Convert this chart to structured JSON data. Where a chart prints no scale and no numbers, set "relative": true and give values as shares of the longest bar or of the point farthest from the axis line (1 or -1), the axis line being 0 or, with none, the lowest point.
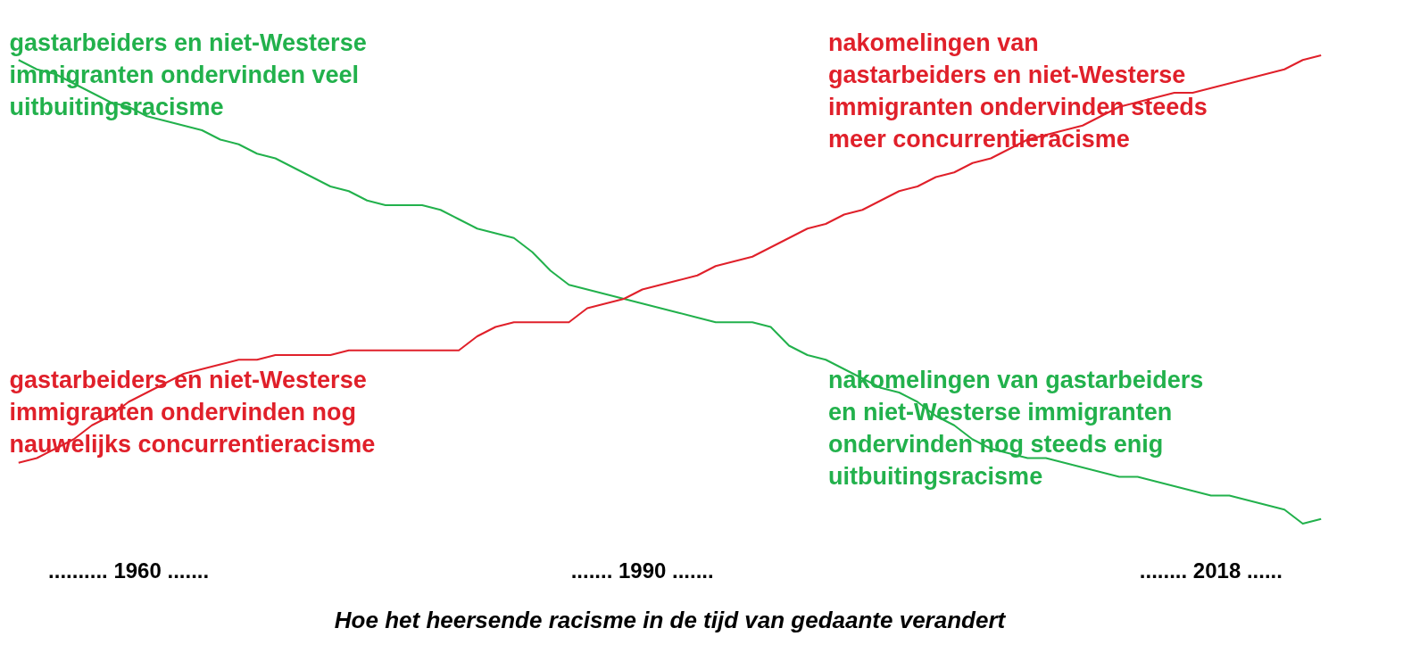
{
  "chart_data": {
    "type": "line",
    "relative": true,
    "title": "Hoe het heersende racisme in de tijd van gedaante verandert",
    "categories": [
      null,
      null,
      null,
      null,
      null,
      null,
      ".......... 1960 .......",
      null,
      null,
      null,
      null,
      null,
      null,
      null,
      null,
      null,
      null,
      null,
      null,
      null,
      null,
      null,
      null,
      null,
      null,
      null,
      null,
      null,
      null,
      null,
      null,
      null,
      null,
      null,
      "....... 1990 .......",
      null,
      null,
      null,
      null,
      null,
      null,
      null,
      null,
      null,
      null,
      null,
      null,
      null,
      null,
      null,
      null,
      null,
      null,
      null,
      null,
      null,
      null,
      null,
      null,
      null,
      null,
      null,
      null,
      null,
      null,
      "........ 2018 ......",
      null,
      null,
      null,
      null,
      null,
      null
    ],
    "grid": false,
    "annotations": [
      "gastarbeiders en niet-Westerse\nimmigranten ondervinden veel\nuitbuitingsracisme",
      "gastarbeiders en niet-Westerse\nimmigranten ondervinden nog\nnauwelijks concurrentieracisme",
      "nakomelingen van\ngastarbeiders en niet-Westerse\nimmigranten ondervinden steeds\nmeer concurrentieracisme",
      "nakomelingen van gastarbeiders\nen niet-Westerse immigranten\nondervinden nog steeds enig\nuitbuitingsracisme"
    ],
    "series": [
      {
        "color": "#22b14c",
        "values": [
          0.99,
          0.97,
          0.96,
          0.94,
          0.92,
          0.9,
          0.89,
          0.87,
          0.86,
          0.85,
          0.84,
          0.82,
          0.81,
          0.79,
          0.78,
          0.76,
          0.74,
          0.72,
          0.71,
          0.69,
          0.68,
          0.68,
          0.68,
          0.67,
          0.65,
          0.63,
          0.62,
          0.61,
          0.58,
          0.54,
          0.51,
          0.5,
          0.49,
          0.48,
          0.47,
          0.46,
          0.45,
          0.44,
          0.43,
          0.43,
          0.43,
          0.42,
          0.38,
          0.36,
          0.35,
          0.33,
          0.31,
          0.29,
          0.28,
          0.26,
          0.23,
          0.21,
          0.18,
          0.16,
          0.15,
          0.14,
          0.14,
          0.13,
          0.12,
          0.11,
          0.1,
          0.1,
          0.09,
          0.08,
          0.07,
          0.06,
          0.06,
          0.05,
          0.04,
          0.03,
          0.0,
          0.01
        ]
      },
      {
        "color": "#e0202a",
        "values": [
          0.13,
          0.14,
          0.16,
          0.18,
          0.21,
          0.23,
          0.26,
          0.28,
          0.3,
          0.32,
          0.33,
          0.34,
          0.35,
          0.35,
          0.36,
          0.36,
          0.36,
          0.36,
          0.37,
          0.37,
          0.37,
          0.37,
          0.37,
          0.37,
          0.37,
          0.4,
          0.42,
          0.43,
          0.43,
          0.43,
          0.43,
          0.46,
          0.47,
          0.48,
          0.5,
          0.51,
          0.52,
          0.53,
          0.55,
          0.56,
          0.57,
          0.59,
          0.61,
          0.63,
          0.64,
          0.66,
          0.67,
          0.69,
          0.71,
          0.72,
          0.74,
          0.75,
          0.77,
          0.78,
          0.8,
          0.82,
          0.83,
          0.84,
          0.85,
          0.87,
          0.89,
          0.9,
          0.91,
          0.92,
          0.92,
          0.93,
          0.94,
          0.95,
          0.96,
          0.97,
          0.99,
          1.0
        ]
      }
    ]
  }
}
